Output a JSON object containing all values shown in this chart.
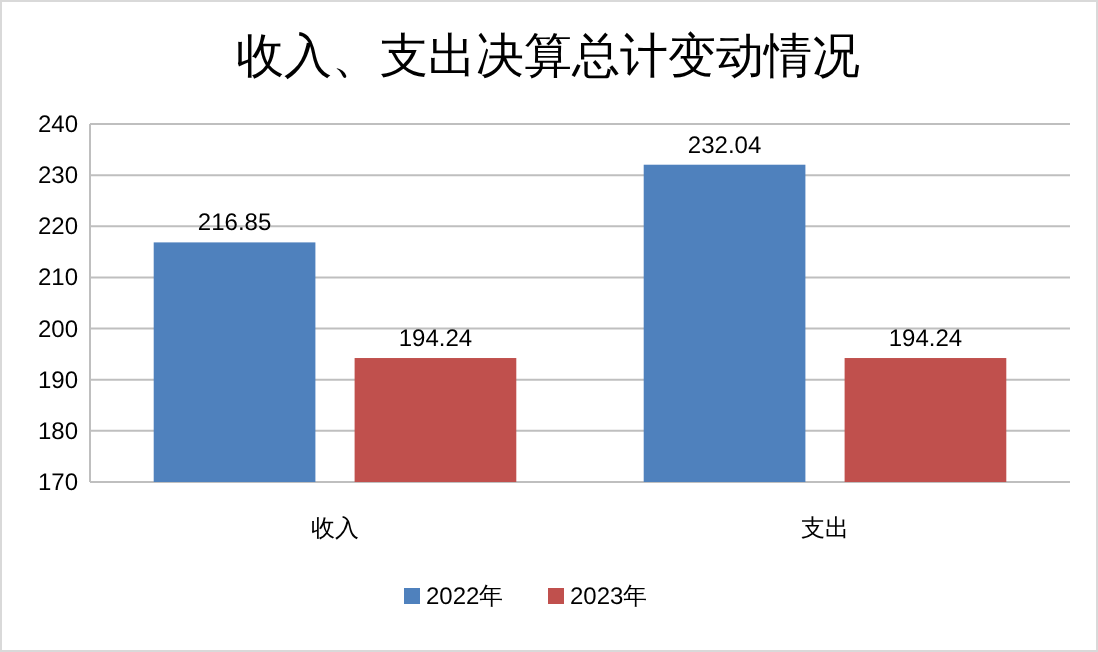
{
  "chart_data": {
    "type": "bar",
    "title": "收入、支出决算总计变动情况",
    "categories": [
      "收入",
      "支出"
    ],
    "series": [
      {
        "name": "2022年",
        "color": "#4f81bd",
        "values": [
          216.85,
          232.04
        ]
      },
      {
        "name": "2023年",
        "color": "#c0504d",
        "values": [
          194.24,
          194.24
        ]
      }
    ],
    "ylim": [
      170,
      240
    ],
    "yticks": [
      170,
      180,
      190,
      200,
      210,
      220,
      230,
      240
    ],
    "grid": "y",
    "legend": "bottom",
    "data_labels": true
  }
}
